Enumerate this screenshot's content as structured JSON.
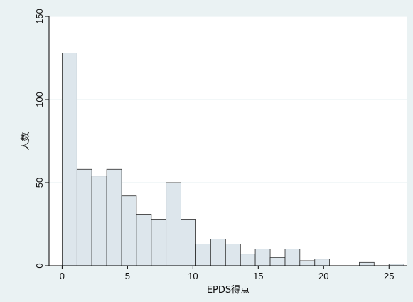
{
  "chart_data": {
    "type": "bar",
    "subtype": "histogram",
    "xlabel": "EPDS得点",
    "ylabel": "人数",
    "xlim": [
      -1,
      26.4
    ],
    "ylim": [
      0,
      150
    ],
    "x_ticks": [
      0,
      5,
      10,
      15,
      20,
      25
    ],
    "y_ticks": [
      0,
      50,
      100,
      150
    ],
    "grid": "horizontal",
    "bar_fill": "#dde6ec",
    "bar_stroke": "#2b2b2b",
    "outer_background": "#eaf2f3",
    "plot_background": "#ffffff",
    "grid_color": "#eaf2f3",
    "bins": [
      {
        "x0": 0.0,
        "x1": 1.14,
        "count": 128
      },
      {
        "x0": 1.14,
        "x1": 2.27,
        "count": 58
      },
      {
        "x0": 2.27,
        "x1": 3.41,
        "count": 54
      },
      {
        "x0": 3.41,
        "x1": 4.55,
        "count": 58
      },
      {
        "x0": 4.55,
        "x1": 5.68,
        "count": 42
      },
      {
        "x0": 5.68,
        "x1": 6.82,
        "count": 31
      },
      {
        "x0": 6.82,
        "x1": 7.95,
        "count": 28
      },
      {
        "x0": 7.95,
        "x1": 9.09,
        "count": 50
      },
      {
        "x0": 9.09,
        "x1": 10.23,
        "count": 28
      },
      {
        "x0": 10.23,
        "x1": 11.36,
        "count": 13
      },
      {
        "x0": 11.36,
        "x1": 12.5,
        "count": 16
      },
      {
        "x0": 12.5,
        "x1": 13.64,
        "count": 13
      },
      {
        "x0": 13.64,
        "x1": 14.77,
        "count": 7
      },
      {
        "x0": 14.77,
        "x1": 15.91,
        "count": 10
      },
      {
        "x0": 15.91,
        "x1": 17.05,
        "count": 5
      },
      {
        "x0": 17.05,
        "x1": 18.18,
        "count": 10
      },
      {
        "x0": 18.18,
        "x1": 19.32,
        "count": 3
      },
      {
        "x0": 19.32,
        "x1": 20.45,
        "count": 4
      },
      {
        "x0": 20.45,
        "x1": 21.59,
        "count": 0
      },
      {
        "x0": 21.59,
        "x1": 22.73,
        "count": 0
      },
      {
        "x0": 22.73,
        "x1": 23.86,
        "count": 2
      },
      {
        "x0": 23.86,
        "x1": 25.0,
        "count": 0
      },
      {
        "x0": 25.0,
        "x1": 26.14,
        "count": 1
      }
    ]
  }
}
